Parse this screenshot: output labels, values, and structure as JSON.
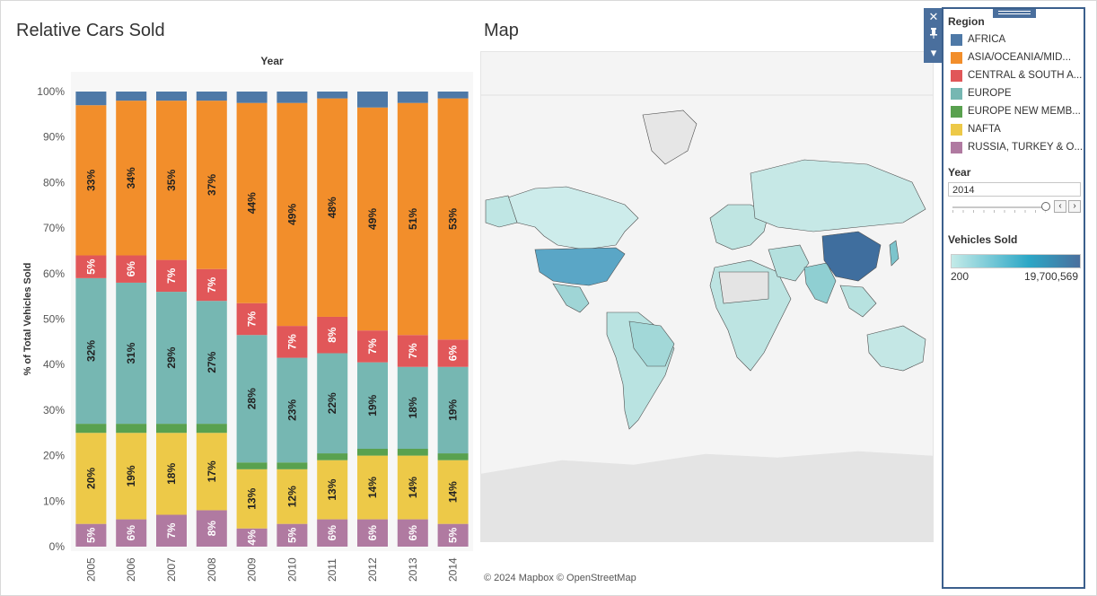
{
  "sheet1": {
    "title": "Relative Cars Sold"
  },
  "map": {
    "title": "Map",
    "attribution": "© 2024 Mapbox  © OpenStreetMap"
  },
  "colors": {
    "AFRICA": "#4e79a7",
    "ASIA/OCEANIA/MIDDLE EAST": "#f28e2b",
    "CENTRAL & SOUTH AMERICA": "#e15759",
    "EUROPE": "#76b7b2",
    "EUROPE NEW MEMBERS": "#59a14f",
    "NAFTA": "#edc948",
    "RUSSIA, TURKEY & OTHER EUROPE": "#b07aa1"
  },
  "toolbar": {
    "close_icon": "close-icon",
    "pin_icon": "pin-icon",
    "menu_icon": "dropdown-icon"
  },
  "legend": {
    "region_title": "Region",
    "items": [
      {
        "label": "AFRICA",
        "color": "#4e79a7"
      },
      {
        "label": "ASIA/OCEANIA/MID...",
        "color": "#f28e2b"
      },
      {
        "label": "CENTRAL & SOUTH A...",
        "color": "#e15759"
      },
      {
        "label": "EUROPE",
        "color": "#76b7b2"
      },
      {
        "label": "EUROPE NEW MEMB...",
        "color": "#59a14f"
      },
      {
        "label": "NAFTA",
        "color": "#edc948"
      },
      {
        "label": "RUSSIA, TURKEY & O...",
        "color": "#b07aa1"
      }
    ],
    "year_title": "Year",
    "year_value": "2014",
    "vehicles_title": "Vehicles Sold",
    "vehicles_min": "200",
    "vehicles_max": "19,700,569"
  },
  "chart_data": {
    "type": "bar",
    "stacked": true,
    "title": "Relative Cars Sold",
    "column_header": "Year",
    "ylabel": "% of Total Vehicles Sold",
    "xlabel": "",
    "ylim": [
      0,
      100
    ],
    "yticks": [
      "0%",
      "10%",
      "20%",
      "30%",
      "40%",
      "50%",
      "60%",
      "70%",
      "80%",
      "90%",
      "100%"
    ],
    "categories": [
      "2005",
      "2006",
      "2007",
      "2008",
      "2009",
      "2010",
      "2011",
      "2012",
      "2013",
      "2014"
    ],
    "series": [
      {
        "name": "RUSSIA, TURKEY & OTHER EUROPE",
        "color": "#b07aa1",
        "values": [
          5,
          6,
          7,
          8,
          4,
          5,
          6,
          6,
          6,
          5
        ],
        "labels": [
          "5%",
          "6%",
          "7%",
          "8%",
          "4%",
          "5%",
          "6%",
          "6%",
          "6%",
          "5%"
        ]
      },
      {
        "name": "NAFTA",
        "color": "#edc948",
        "values": [
          20,
          19,
          18,
          17,
          13,
          12,
          13,
          14,
          14,
          14
        ],
        "labels": [
          "20%",
          "19%",
          "18%",
          "17%",
          "13%",
          "12%",
          "13%",
          "14%",
          "14%",
          "14%"
        ]
      },
      {
        "name": "EUROPE NEW MEMBERS",
        "color": "#59a14f",
        "values": [
          2,
          2,
          2,
          2,
          1.5,
          1.5,
          1.5,
          1.5,
          1.5,
          1.5
        ],
        "labels": [
          "",
          "",
          "",
          "",
          "",
          "",
          "",
          "",
          "",
          ""
        ]
      },
      {
        "name": "EUROPE",
        "color": "#76b7b2",
        "values": [
          32,
          31,
          29,
          27,
          28,
          23,
          22,
          19,
          18,
          19
        ],
        "labels": [
          "32%",
          "31%",
          "29%",
          "27%",
          "28%",
          "23%",
          "22%",
          "19%",
          "18%",
          "19%"
        ]
      },
      {
        "name": "CENTRAL & SOUTH AMERICA",
        "color": "#e15759",
        "values": [
          5,
          6,
          7,
          7,
          7,
          7,
          8,
          7,
          7,
          6
        ],
        "labels": [
          "5%",
          "6%",
          "7%",
          "7%",
          "7%",
          "7%",
          "8%",
          "7%",
          "7%",
          "6%"
        ]
      },
      {
        "name": "ASIA/OCEANIA/MIDDLE EAST",
        "color": "#f28e2b",
        "values": [
          33,
          34,
          35,
          37,
          44,
          49,
          48,
          49,
          51,
          53
        ],
        "labels": [
          "33%",
          "34%",
          "35%",
          "37%",
          "44%",
          "49%",
          "48%",
          "49%",
          "51%",
          "53%"
        ]
      },
      {
        "name": "AFRICA",
        "color": "#4e79a7",
        "values": [
          3,
          2,
          2,
          2,
          2.5,
          2.5,
          1.5,
          3.5,
          2.5,
          1.5
        ],
        "labels": [
          "",
          "",
          "",
          "",
          "",
          "",
          "",
          "",
          "",
          ""
        ]
      }
    ]
  }
}
